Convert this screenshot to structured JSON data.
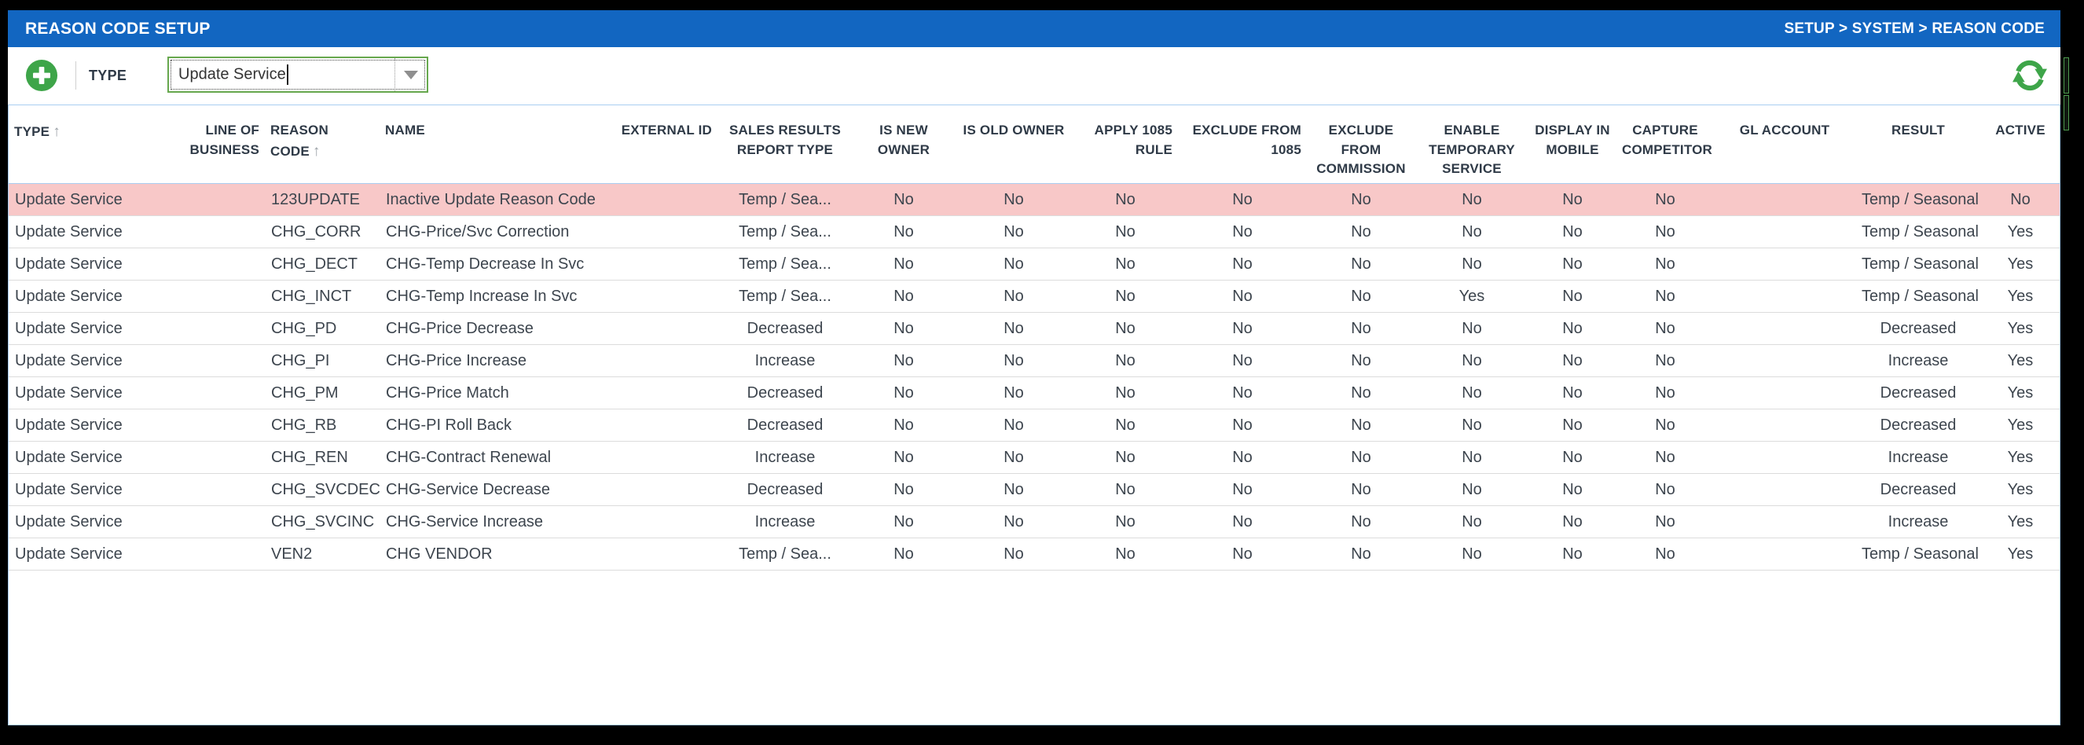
{
  "titlebar": {
    "title": "REASON CODE SETUP",
    "breadcrumb": "SETUP > SYSTEM > REASON CODE",
    "bg_color": "#1266c1"
  },
  "toolbar": {
    "type_label": "TYPE",
    "type_value": "Update Service",
    "add_icon": "plus-icon",
    "refresh_icon": "refresh-icon",
    "icon_green": "#3ea549"
  },
  "table": {
    "highlight_color": "#f8c8c8",
    "header_border_color": "#a9cdf1",
    "sort_asc_glyph": "↑",
    "columns": [
      {
        "key": "type",
        "label": "TYPE",
        "sort": "asc",
        "align": "left"
      },
      {
        "key": "line_of_business",
        "label": "LINE OF BUSINESS",
        "align": "right"
      },
      {
        "key": "reason_code",
        "label": "REASON CODE",
        "sort": "asc",
        "align": "left"
      },
      {
        "key": "name",
        "label": "NAME",
        "align": "left"
      },
      {
        "key": "external_id",
        "label": "EXTERNAL ID",
        "align": "right"
      },
      {
        "key": "sales_results_report_type",
        "label": "SALES RESULTS REPORT TYPE",
        "align": "center"
      },
      {
        "key": "is_new_owner",
        "label": "IS NEW OWNER",
        "align": "center"
      },
      {
        "key": "is_old_owner",
        "label": "IS OLD OWNER",
        "align": "center"
      },
      {
        "key": "apply_1085_rule",
        "label": "APPLY 1085 RULE",
        "align": "center",
        "header_align": "right"
      },
      {
        "key": "exclude_from_1085",
        "label": "EXCLUDE FROM 1085",
        "align": "center",
        "header_align": "right"
      },
      {
        "key": "exclude_from_commission",
        "label": "EXCLUDE FROM COMMISSION",
        "align": "center"
      },
      {
        "key": "enable_temporary_service",
        "label": "ENABLE TEMPORARY SERVICE",
        "align": "center"
      },
      {
        "key": "display_in_mobile",
        "label": "DISPLAY IN MOBILE",
        "align": "center"
      },
      {
        "key": "capture_competitor",
        "label": "CAPTURE COMPETITOR",
        "align": "center"
      },
      {
        "key": "gl_account",
        "label": "GL ACCOUNT",
        "align": "center"
      },
      {
        "key": "result",
        "label": "RESULT",
        "align": "center"
      },
      {
        "key": "active",
        "label": "ACTIVE",
        "align": "center"
      }
    ],
    "rows": [
      {
        "highlighted": true,
        "cells": [
          "Update Service",
          "",
          "123UPDATE",
          "Inactive Update Reason Code",
          "",
          "Temp / Sea...",
          "No",
          "No",
          "No",
          "No",
          "No",
          "No",
          "No",
          "No",
          "",
          "Temp / Seasonal",
          "No"
        ]
      },
      {
        "highlighted": false,
        "cells": [
          "Update Service",
          "",
          "CHG_CORR",
          "CHG-Price/Svc Correction",
          "",
          "Temp / Sea...",
          "No",
          "No",
          "No",
          "No",
          "No",
          "No",
          "No",
          "No",
          "",
          "Temp / Seasonal",
          "Yes"
        ]
      },
      {
        "highlighted": false,
        "cells": [
          "Update Service",
          "",
          "CHG_DECT",
          "CHG-Temp Decrease In Svc",
          "",
          "Temp / Sea...",
          "No",
          "No",
          "No",
          "No",
          "No",
          "No",
          "No",
          "No",
          "",
          "Temp / Seasonal",
          "Yes"
        ]
      },
      {
        "highlighted": false,
        "cells": [
          "Update Service",
          "",
          "CHG_INCT",
          "CHG-Temp Increase In Svc",
          "",
          "Temp / Sea...",
          "No",
          "No",
          "No",
          "No",
          "No",
          "Yes",
          "No",
          "No",
          "",
          "Temp / Seasonal",
          "Yes"
        ]
      },
      {
        "highlighted": false,
        "cells": [
          "Update Service",
          "",
          "CHG_PD",
          "CHG-Price Decrease",
          "",
          "Decreased",
          "No",
          "No",
          "No",
          "No",
          "No",
          "No",
          "No",
          "No",
          "",
          "Decreased",
          "Yes"
        ]
      },
      {
        "highlighted": false,
        "cells": [
          "Update Service",
          "",
          "CHG_PI",
          "CHG-Price Increase",
          "",
          "Increase",
          "No",
          "No",
          "No",
          "No",
          "No",
          "No",
          "No",
          "No",
          "",
          "Increase",
          "Yes"
        ]
      },
      {
        "highlighted": false,
        "cells": [
          "Update Service",
          "",
          "CHG_PM",
          "CHG-Price Match",
          "",
          "Decreased",
          "No",
          "No",
          "No",
          "No",
          "No",
          "No",
          "No",
          "No",
          "",
          "Decreased",
          "Yes"
        ]
      },
      {
        "highlighted": false,
        "cells": [
          "Update Service",
          "",
          "CHG_RB",
          "CHG-PI Roll Back",
          "",
          "Decreased",
          "No",
          "No",
          "No",
          "No",
          "No",
          "No",
          "No",
          "No",
          "",
          "Decreased",
          "Yes"
        ]
      },
      {
        "highlighted": false,
        "cells": [
          "Update Service",
          "",
          "CHG_REN",
          "CHG-Contract Renewal",
          "",
          "Increase",
          "No",
          "No",
          "No",
          "No",
          "No",
          "No",
          "No",
          "No",
          "",
          "Increase",
          "Yes"
        ]
      },
      {
        "highlighted": false,
        "cells": [
          "Update Service",
          "",
          "CHG_SVCDEC",
          "CHG-Service Decrease",
          "",
          "Decreased",
          "No",
          "No",
          "No",
          "No",
          "No",
          "No",
          "No",
          "No",
          "",
          "Decreased",
          "Yes"
        ]
      },
      {
        "highlighted": false,
        "cells": [
          "Update Service",
          "",
          "CHG_SVCINC",
          "CHG-Service Increase",
          "",
          "Increase",
          "No",
          "No",
          "No",
          "No",
          "No",
          "No",
          "No",
          "No",
          "",
          "Increase",
          "Yes"
        ]
      },
      {
        "highlighted": false,
        "cells": [
          "Update Service",
          "",
          "VEN2",
          "CHG VENDOR",
          "",
          "Temp / Sea...",
          "No",
          "No",
          "No",
          "No",
          "No",
          "No",
          "No",
          "No",
          "",
          "Temp / Seasonal",
          "Yes"
        ]
      }
    ]
  }
}
